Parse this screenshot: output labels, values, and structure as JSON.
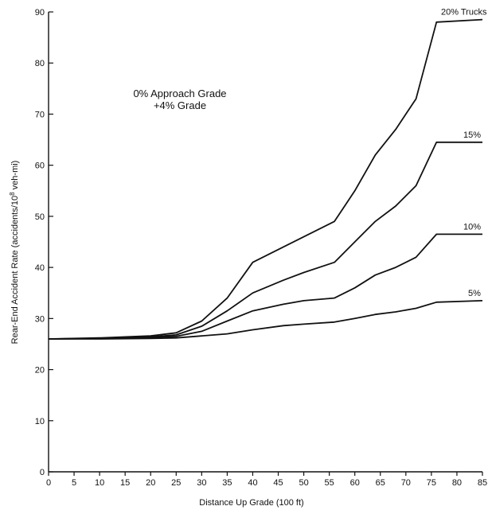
{
  "chart_data": {
    "type": "line",
    "xlabel": "Distance Up Grade (100 ft)",
    "ylabel": "Rear-End Accident Rate (accidents/10",
    "ylabel_sup": "8",
    "ylabel_tail": " veh-mi)",
    "xlim": [
      0,
      85
    ],
    "ylim": [
      0,
      90
    ],
    "xticks": [
      "0",
      "5",
      "10",
      "15",
      "20",
      "25",
      "30",
      "35",
      "40",
      "45",
      "50",
      "55",
      "60",
      "65",
      "70",
      "75",
      "80",
      "85"
    ],
    "yticks": [
      "0",
      "10",
      "20",
      "30",
      "40",
      "50",
      "60",
      "70",
      "80",
      "90"
    ],
    "grid": false,
    "annotation_line1": "0% Approach Grade",
    "annotation_line2": "+4% Grade",
    "series": [
      {
        "name": "20% Trucks",
        "points": [
          [
            0,
            26
          ],
          [
            10,
            26.2
          ],
          [
            20,
            26.6
          ],
          [
            25,
            27.2
          ],
          [
            30,
            29.5
          ],
          [
            35,
            34
          ],
          [
            40,
            41
          ],
          [
            46,
            44
          ],
          [
            50,
            46
          ],
          [
            56,
            49
          ],
          [
            60,
            55
          ],
          [
            64,
            62
          ],
          [
            68,
            67
          ],
          [
            72,
            73
          ],
          [
            76,
            88
          ],
          [
            85,
            88.5
          ]
        ]
      },
      {
        "name": "15%",
        "points": [
          [
            0,
            26
          ],
          [
            10,
            26.1
          ],
          [
            20,
            26.4
          ],
          [
            25,
            26.8
          ],
          [
            30,
            28.5
          ],
          [
            35,
            31.5
          ],
          [
            40,
            35
          ],
          [
            46,
            37.5
          ],
          [
            50,
            39
          ],
          [
            56,
            41
          ],
          [
            60,
            45
          ],
          [
            64,
            49
          ],
          [
            68,
            52
          ],
          [
            72,
            56
          ],
          [
            76,
            64.5
          ],
          [
            85,
            64.5
          ]
        ]
      },
      {
        "name": "10%",
        "points": [
          [
            0,
            26
          ],
          [
            10,
            26.1
          ],
          [
            20,
            26.3
          ],
          [
            25,
            26.5
          ],
          [
            30,
            27.5
          ],
          [
            35,
            29.5
          ],
          [
            40,
            31.5
          ],
          [
            46,
            32.8
          ],
          [
            50,
            33.5
          ],
          [
            56,
            34
          ],
          [
            60,
            36
          ],
          [
            64,
            38.5
          ],
          [
            68,
            40
          ],
          [
            72,
            42
          ],
          [
            76,
            46.5
          ],
          [
            85,
            46.5
          ]
        ]
      },
      {
        "name": "5%",
        "points": [
          [
            0,
            26
          ],
          [
            10,
            26
          ],
          [
            20,
            26.1
          ],
          [
            25,
            26.2
          ],
          [
            30,
            26.6
          ],
          [
            35,
            27
          ],
          [
            40,
            27.8
          ],
          [
            46,
            28.6
          ],
          [
            50,
            28.9
          ],
          [
            56,
            29.3
          ],
          [
            60,
            30
          ],
          [
            64,
            30.8
          ],
          [
            68,
            31.3
          ],
          [
            72,
            32
          ],
          [
            76,
            33.2
          ],
          [
            85,
            33.5
          ]
        ]
      }
    ]
  }
}
